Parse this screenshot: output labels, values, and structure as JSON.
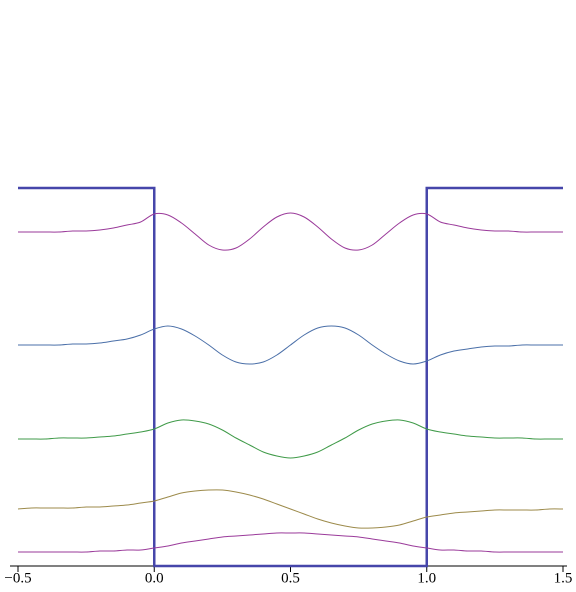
{
  "chart_data": {
    "type": "line",
    "x": [
      -0.5,
      -0.45,
      -0.4,
      -0.35,
      -0.3,
      -0.25,
      -0.2,
      -0.15,
      -0.1,
      -0.05,
      0,
      0.05,
      0.1,
      0.15,
      0.2,
      0.25,
      0.3,
      0.35,
      0.4,
      0.45,
      0.5,
      0.55,
      0.6,
      0.65,
      0.7,
      0.75,
      0.8,
      0.85,
      0.9,
      0.95,
      1,
      1.05,
      1.1,
      1.15,
      1.2,
      1.25,
      1.3,
      1.35,
      1.4,
      1.45,
      1.5
    ],
    "series": [
      {
        "color": "#4646aa",
        "smooth": false,
        "x": [
          -0.5,
          0,
          0,
          1,
          1,
          1.5
        ],
        "values": [
          3.78,
          3.78,
          0,
          0,
          3.78,
          3.78
        ]
      },
      {
        "color": "#9a3a9a",
        "smooth": true,
        "values": [
          0.14,
          0.14,
          0.14,
          0.14,
          0.14,
          0.14,
          0.15,
          0.15,
          0.16,
          0.16,
          0.18,
          0.2,
          0.23,
          0.25,
          0.27,
          0.29,
          0.3,
          0.31,
          0.32,
          0.33,
          0.33,
          0.33,
          0.32,
          0.31,
          0.3,
          0.29,
          0.27,
          0.25,
          0.23,
          0.2,
          0.18,
          0.16,
          0.16,
          0.15,
          0.15,
          0.14,
          0.14,
          0.14,
          0.14,
          0.14,
          0.14
        ]
      },
      {
        "color": "#9c8a4a",
        "smooth": true,
        "values": [
          0.57,
          0.58,
          0.58,
          0.58,
          0.58,
          0.59,
          0.59,
          0.6,
          0.61,
          0.63,
          0.65,
          0.69,
          0.73,
          0.75,
          0.76,
          0.76,
          0.74,
          0.71,
          0.67,
          0.62,
          0.57,
          0.52,
          0.47,
          0.43,
          0.4,
          0.38,
          0.38,
          0.39,
          0.41,
          0.45,
          0.49,
          0.51,
          0.53,
          0.54,
          0.55,
          0.56,
          0.56,
          0.56,
          0.56,
          0.57,
          0.57
        ]
      },
      {
        "color": "#3f9a48",
        "smooth": true,
        "values": [
          1.27,
          1.27,
          1.27,
          1.28,
          1.28,
          1.28,
          1.29,
          1.3,
          1.32,
          1.34,
          1.37,
          1.43,
          1.46,
          1.45,
          1.42,
          1.36,
          1.28,
          1.21,
          1.14,
          1.1,
          1.08,
          1.1,
          1.14,
          1.21,
          1.28,
          1.36,
          1.42,
          1.45,
          1.46,
          1.43,
          1.37,
          1.34,
          1.32,
          1.3,
          1.29,
          1.28,
          1.28,
          1.28,
          1.27,
          1.27,
          1.27
        ]
      },
      {
        "color": "#4a6fa8",
        "smooth": true,
        "values": [
          2.21,
          2.21,
          2.21,
          2.21,
          2.22,
          2.22,
          2.23,
          2.25,
          2.27,
          2.31,
          2.37,
          2.4,
          2.37,
          2.3,
          2.21,
          2.11,
          2.04,
          2.02,
          2.04,
          2.11,
          2.21,
          2.31,
          2.38,
          2.4,
          2.38,
          2.31,
          2.21,
          2.12,
          2.05,
          2.02,
          2.05,
          2.11,
          2.15,
          2.17,
          2.19,
          2.2,
          2.2,
          2.21,
          2.21,
          2.21,
          2.21
        ]
      },
      {
        "color": "#9a3a9a",
        "smooth": true,
        "values": [
          3.34,
          3.34,
          3.34,
          3.34,
          3.35,
          3.35,
          3.36,
          3.38,
          3.41,
          3.44,
          3.52,
          3.51,
          3.43,
          3.32,
          3.21,
          3.16,
          3.18,
          3.27,
          3.39,
          3.49,
          3.53,
          3.49,
          3.39,
          3.27,
          3.18,
          3.16,
          3.21,
          3.32,
          3.43,
          3.51,
          3.52,
          3.44,
          3.41,
          3.38,
          3.36,
          3.35,
          3.35,
          3.34,
          3.34,
          3.34,
          3.34
        ]
      }
    ],
    "xlim": [
      -0.5,
      1.5
    ],
    "ylim": [
      0,
      5.66
    ],
    "xticks": [
      {
        "value": -0.5,
        "label": "−0.5"
      },
      {
        "value": 0,
        "label": "0.0"
      },
      0.5,
      {
        "value": 1,
        "label": "1.0"
      },
      1.5
    ]
  }
}
